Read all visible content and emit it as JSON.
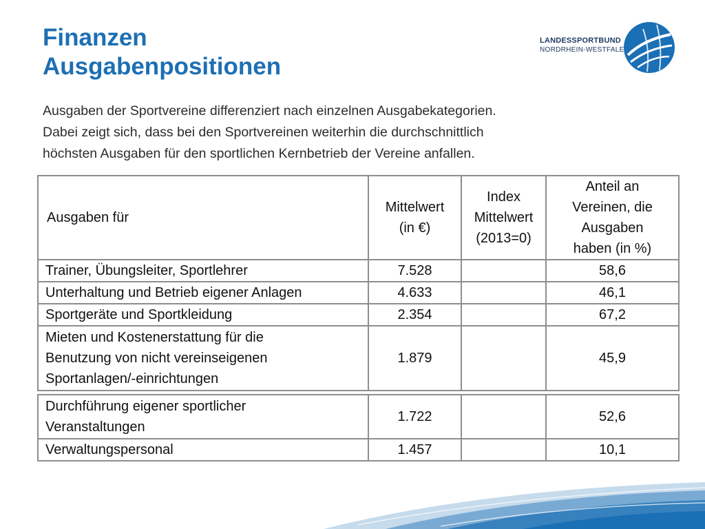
{
  "title": {
    "line1": "Finanzen",
    "line2": "Ausgabenpositionen"
  },
  "logo": {
    "line1": "LANDESSPORTBUND",
    "line2": "NORDRHEIN-WESTFALEN"
  },
  "intro": {
    "line1": "Ausgaben der Sportvereine differenziert nach einzelnen Ausgabekategorien.",
    "line2": "Dabei zeigt sich, dass bei den Sportvereinen weiterhin die durchschnittlich",
    "line3": "höchsten Ausgaben für den sportlichen Kernbetrieb der Vereine anfallen."
  },
  "table": {
    "headers": {
      "col1": "Ausgaben für",
      "col2_l1": "Mittelwert",
      "col2_l2": "(in €)",
      "col3_l1": "Index",
      "col3_l2": "Mittelwert",
      "col3_l3": "(2013=0)",
      "col4_l1": "Anteil an",
      "col4_l2": "Vereinen, die",
      "col4_l3": "Ausgaben",
      "col4_l4": "haben (in %)"
    },
    "rows": [
      {
        "label_l1": "Trainer, Übungsleiter, Sportlehrer",
        "mittelwert": "7.528",
        "index": "",
        "anteil": "58,6"
      },
      {
        "label_l1": "Unterhaltung und Betrieb eigener Anlagen",
        "mittelwert": "4.633",
        "index": "",
        "anteil": "46,1"
      },
      {
        "label_l1": "Sportgeräte und Sportkleidung",
        "mittelwert": "2.354",
        "index": "",
        "anteil": "67,2"
      },
      {
        "label_l1": "Mieten und Kostenerstattung für die",
        "label_l2": "Benutzung von nicht vereinseigenen",
        "label_l3": "Sportanlagen/-einrichtungen",
        "mittelwert": "1.879",
        "index": "",
        "anteil": "45,9"
      },
      {
        "label_l1": "Durchführung eigener sportlicher",
        "label_l2": "Veranstaltungen",
        "mittelwert": "1.722",
        "index": "",
        "anteil": "52,6"
      },
      {
        "label_l1": "Verwaltungspersonal",
        "mittelwert": "1.457",
        "index": "",
        "anteil": "10,1"
      }
    ]
  },
  "colors": {
    "title": "#1d6fb4",
    "logo_text": "#1f3a63",
    "logo_ball": "#1a6fb5",
    "swoosh": "#1a6fb5"
  }
}
